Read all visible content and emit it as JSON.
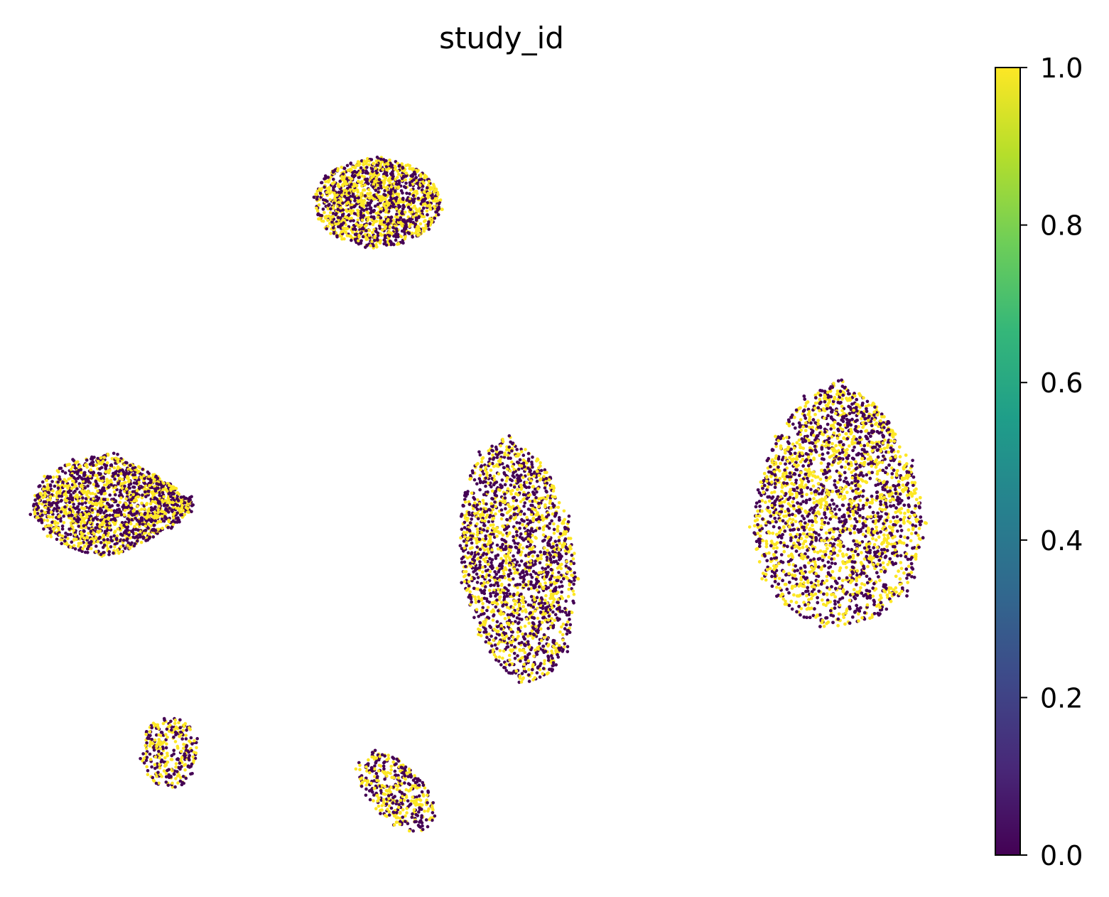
{
  "chart_data": {
    "type": "scatter",
    "title": "study_id",
    "xlabel": "",
    "ylabel": "",
    "axes_visible": false,
    "grid": false,
    "point_colors": {
      "0": "#440154",
      "1": "#fde725"
    },
    "colorbar": {
      "colormap": "viridis",
      "range": [
        0,
        1
      ],
      "ticks": [
        "0.0",
        "0.2",
        "0.4",
        "0.6",
        "0.8",
        "1.0"
      ],
      "tick_values": [
        0,
        0.2,
        0.4,
        0.6,
        0.8,
        1.0
      ],
      "stops": [
        "#440154",
        "#482878",
        "#3e4989",
        "#31688e",
        "#26828e",
        "#1f9e89",
        "#35b779",
        "#6ece58",
        "#b5de2b",
        "#fde725"
      ]
    },
    "clusters": [
      {
        "name": "top",
        "cx": 0.37,
        "cy": 0.83,
        "rx": 0.067,
        "ry": 0.055,
        "approx_points": 1500,
        "fraction_value_1": 0.55
      },
      {
        "name": "left",
        "cx": 0.09,
        "cy": 0.45,
        "rx": 0.085,
        "ry": 0.063,
        "approx_points": 1800,
        "fraction_value_1": 0.45
      },
      {
        "name": "center",
        "cx": 0.52,
        "cy": 0.38,
        "rx": 0.06,
        "ry": 0.15,
        "approx_points": 2000,
        "fraction_value_1": 0.45
      },
      {
        "name": "right",
        "cx": 0.86,
        "cy": 0.45,
        "rx": 0.1,
        "ry": 0.15,
        "approx_points": 4500,
        "fraction_value_1": 0.5
      },
      {
        "name": "bottom-left",
        "cx": 0.15,
        "cy": 0.14,
        "rx": 0.03,
        "ry": 0.045,
        "approx_points": 300,
        "fraction_value_1": 0.45
      },
      {
        "name": "bottom-center",
        "cx": 0.39,
        "cy": 0.09,
        "rx": 0.035,
        "ry": 0.05,
        "approx_points": 400,
        "fraction_value_1": 0.45
      }
    ]
  }
}
